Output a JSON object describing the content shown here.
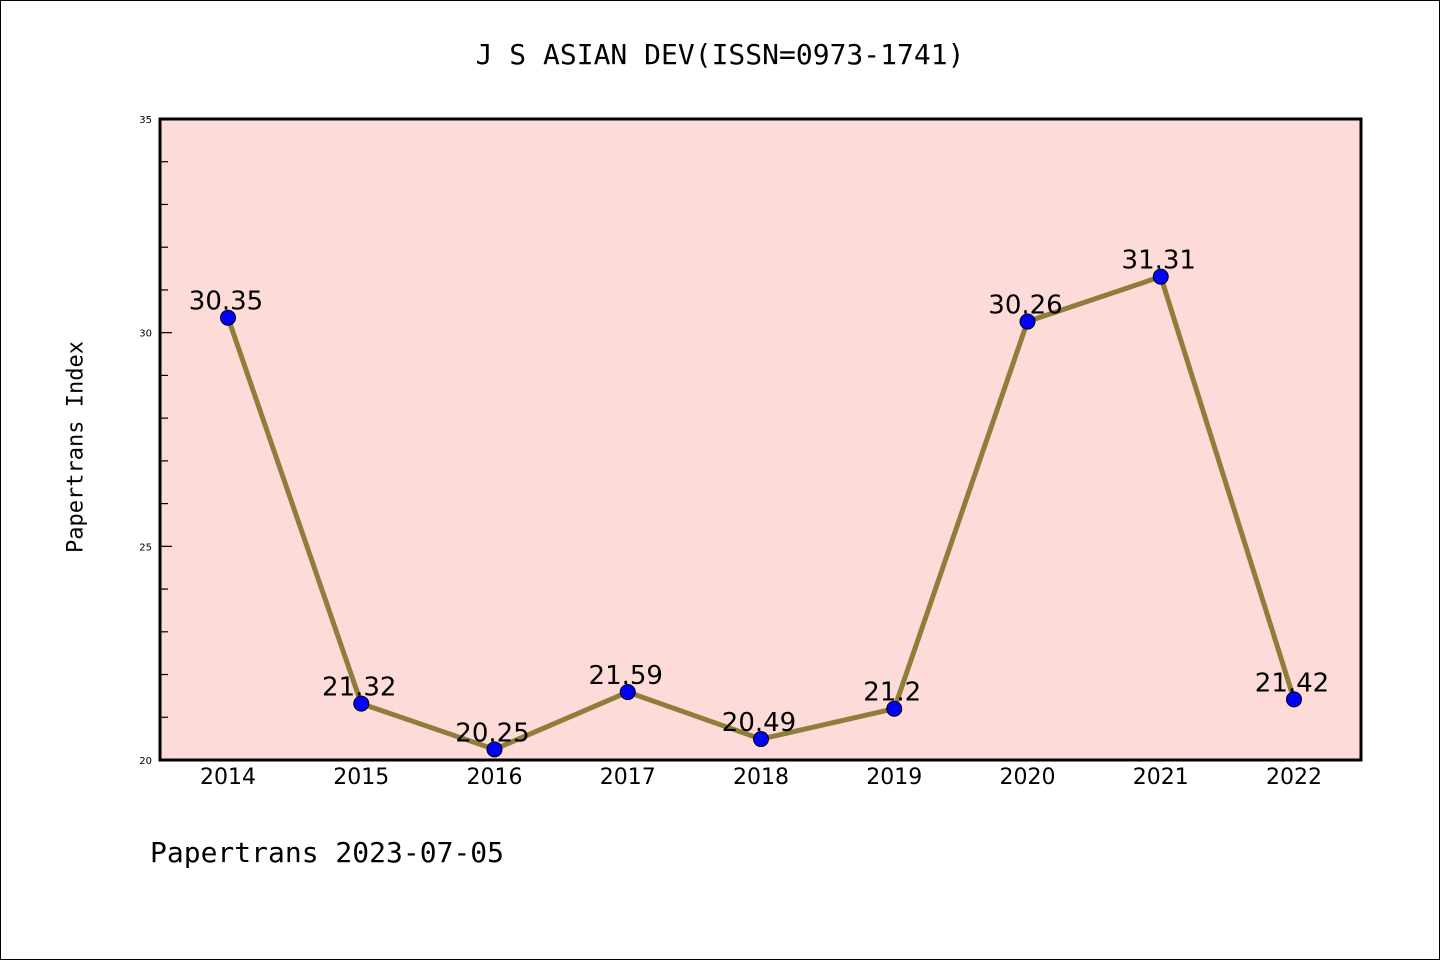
{
  "chart_data": {
    "type": "line",
    "title": "J S ASIAN DEV(ISSN=0973-1741)",
    "xlabel": "",
    "ylabel": "Papertrans Index",
    "categories": [
      "2014",
      "2015",
      "2016",
      "2017",
      "2018",
      "2019",
      "2020",
      "2021",
      "2022"
    ],
    "values": [
      30.35,
      21.32,
      20.25,
      21.59,
      20.49,
      21.2,
      30.26,
      31.31,
      21.42
    ],
    "data_labels": [
      "30.35",
      "21.32",
      "20.25",
      "21.59",
      "20.49",
      "21.2",
      "30.26",
      "31.31",
      "21.42"
    ],
    "ylim": [
      20,
      35
    ],
    "yticks": [
      "20",
      "25",
      "30",
      "35"
    ],
    "grid": false,
    "line_color": "#8f7d3a",
    "marker_color": "#0000ff",
    "plot_background": "#fddbd8"
  },
  "footer": "Papertrans 2023-07-05"
}
